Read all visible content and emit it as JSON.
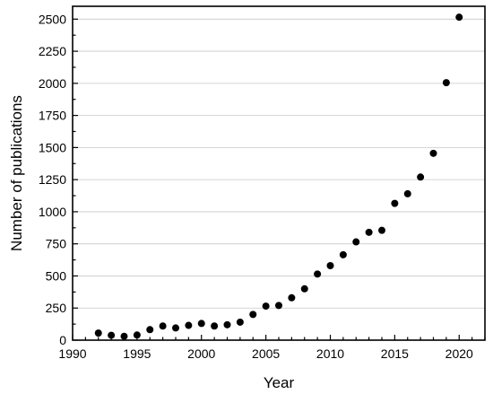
{
  "chart_data": {
    "type": "scatter",
    "title": "",
    "xlabel": "Year",
    "ylabel": "Number of publications",
    "xlim": [
      1990,
      2022
    ],
    "ylim": [
      0,
      2600
    ],
    "x_ticks": [
      1990,
      1995,
      2000,
      2005,
      2010,
      2015,
      2020
    ],
    "y_ticks": [
      0,
      250,
      500,
      750,
      1000,
      1250,
      1500,
      1750,
      2000,
      2250,
      2500
    ],
    "grid": "horizontal",
    "marker_color": "#000000",
    "series": [
      {
        "x": [
          1992,
          1993,
          1994,
          1995,
          1996,
          1997,
          1998,
          1999,
          2000,
          2001,
          2002,
          2003,
          2004,
          2005,
          2006,
          2007,
          2008,
          2009,
          2010,
          2011,
          2012,
          2013,
          2014,
          2015,
          2016,
          2017,
          2018,
          2019,
          2020
        ],
        "y": [
          55,
          38,
          30,
          40,
          82,
          110,
          95,
          115,
          130,
          110,
          120,
          140,
          200,
          265,
          270,
          330,
          400,
          515,
          580,
          665,
          765,
          840,
          855,
          1065,
          1140,
          1270,
          1455,
          2005,
          2515
        ]
      }
    ]
  }
}
